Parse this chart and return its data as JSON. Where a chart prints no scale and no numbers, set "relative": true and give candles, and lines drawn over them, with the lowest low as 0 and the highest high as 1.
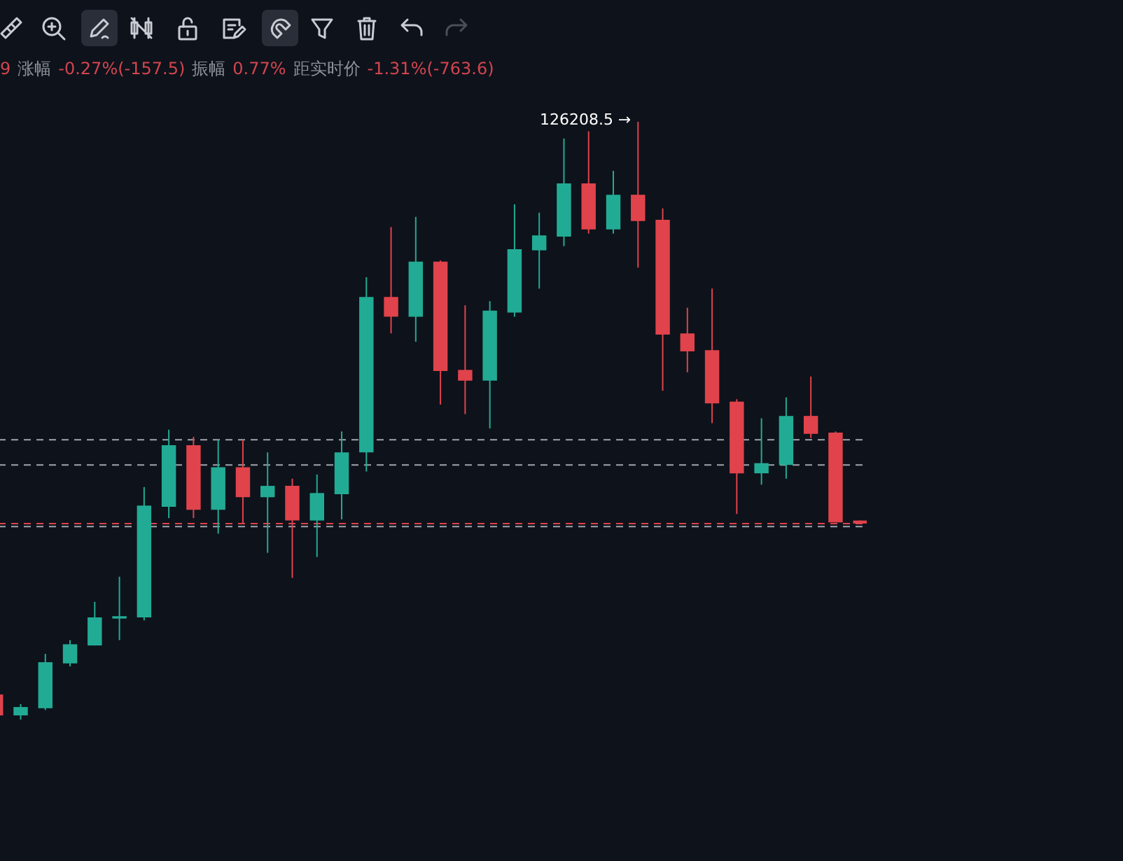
{
  "chart_data": {
    "type": "candlestick",
    "relative": true,
    "categories": [
      null,
      null,
      null,
      null,
      null,
      null,
      null,
      null,
      null,
      null,
      null,
      null,
      null,
      null,
      null,
      null,
      null,
      null,
      null,
      null,
      null,
      null,
      null,
      null,
      null,
      null,
      null,
      null,
      null,
      null,
      null,
      null,
      null,
      null,
      null,
      null
    ],
    "ohlc": [
      [
        0.042,
        0.047,
        0.007,
        0.007
      ],
      [
        0.007,
        0.026,
        0,
        0.021
      ],
      [
        0.019,
        0.11,
        0.016,
        0.096
      ],
      [
        0.094,
        0.133,
        0.089,
        0.126
      ],
      [
        0.124,
        0.197,
        0.124,
        0.171
      ],
      [
        0.169,
        0.239,
        0.133,
        0.173
      ],
      [
        0.171,
        0.389,
        0.166,
        0.358
      ],
      [
        0.356,
        0.485,
        0.337,
        0.459
      ],
      [
        0.459,
        0.473,
        0.337,
        0.351
      ],
      [
        0.351,
        0.468,
        0.311,
        0.422
      ],
      [
        0.422,
        0.468,
        0.328,
        0.372
      ],
      [
        0.372,
        0.447,
        0.279,
        0.391
      ],
      [
        0.391,
        0.403,
        0.237,
        0.333
      ],
      [
        0.333,
        0.41,
        0.272,
        0.379
      ],
      [
        0.377,
        0.482,
        0.335,
        0.447
      ],
      [
        0.447,
        0.74,
        0.415,
        0.707
      ],
      [
        0.707,
        0.824,
        0.646,
        0.674
      ],
      [
        0.674,
        0.841,
        0.632,
        0.766
      ],
      [
        0.766,
        0.768,
        0.527,
        0.583
      ],
      [
        0.585,
        0.693,
        0.511,
        0.567
      ],
      [
        0.567,
        0.7,
        0.487,
        0.684
      ],
      [
        0.681,
        0.862,
        0.674,
        0.787
      ],
      [
        0.785,
        0.848,
        0.721,
        0.81
      ],
      [
        0.808,
        0.972,
        0.792,
        0.897
      ],
      [
        0.897,
        0.984,
        0.813,
        0.82
      ],
      [
        0.82,
        0.918,
        0.813,
        0.878
      ],
      [
        0.878,
        1,
        0.756,
        0.834
      ],
      [
        0.836,
        0.855,
        0.55,
        0.644
      ],
      [
        0.646,
        0.689,
        0.581,
        0.616
      ],
      [
        0.618,
        0.721,
        0.496,
        0.529
      ],
      [
        0.532,
        0.536,
        0.344,
        0.412
      ],
      [
        0.412,
        0.504,
        0.393,
        0.429
      ],
      [
        0.426,
        0.539,
        0.403,
        0.508
      ],
      [
        0.508,
        0.574,
        0.471,
        0.478
      ],
      [
        0.48,
        0.482,
        0.33,
        0.33
      ],
      [
        0.333,
        0.333,
        0.328,
        0.328
      ]
    ],
    "colors": [
      "#e0434b",
      "#22ab94",
      "#22ab94",
      "#22ab94",
      "#22ab94",
      "#22ab94",
      "#22ab94",
      "#22ab94",
      "#e0434b",
      "#22ab94",
      "#e0434b",
      "#22ab94",
      "#e0434b",
      "#22ab94",
      "#22ab94",
      "#22ab94",
      "#e0434b",
      "#22ab94",
      "#e0434b",
      "#e0434b",
      "#22ab94",
      "#22ab94",
      "#22ab94",
      "#22ab94",
      "#e0434b",
      "#22ab94",
      "#e0434b",
      "#e0434b",
      "#e0434b",
      "#e0434b",
      "#e0434b",
      "#22ab94",
      "#22ab94",
      "#e0434b",
      "#e0434b",
      "#e0434b"
    ],
    "ref_lines": [
      {
        "axis": "y",
        "value": 0.468,
        "color": "#a0a4ac",
        "line_style": "dashed"
      },
      {
        "axis": "y",
        "value": 0.426,
        "color": "#a0a4ac",
        "line_style": "dashed"
      },
      {
        "axis": "y",
        "value": 0.328,
        "color": "#e0434b",
        "line_style": "dashed"
      },
      {
        "axis": "y",
        "value": 0.323,
        "color": "#a0a4ac",
        "line_style": "dashed"
      }
    ],
    "annotations": [
      "9",
      "涨幅",
      "-0.27%(-157.5)",
      "振幅",
      "0.77%",
      "距实时价",
      "-1.31%(-763.6)",
      "126208.5 →"
    ]
  }
}
